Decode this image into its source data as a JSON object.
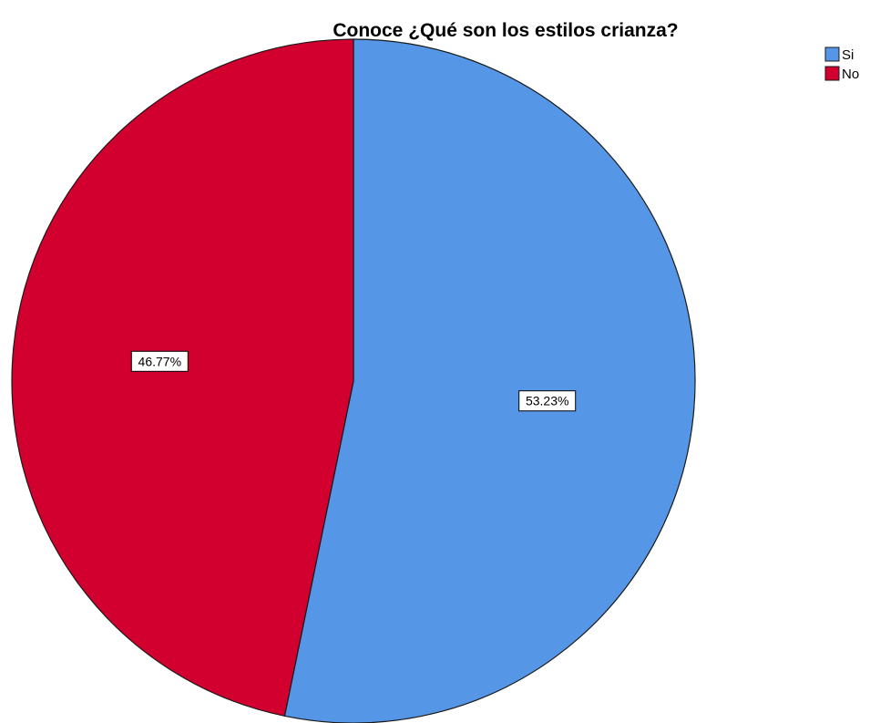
{
  "chart_data": {
    "type": "pie",
    "title": "Conoce ¿Qué son los estilos crianza?",
    "categories": [
      "Si",
      "No"
    ],
    "values": [
      53.23,
      46.77
    ],
    "unit": "%",
    "data_labels": [
      "53.23%",
      "46.77%"
    ],
    "colors": [
      "#5596E6",
      "#D1002F"
    ],
    "start_angle_deg": 0,
    "direction": "clockwise",
    "legend": {
      "position": "top-right",
      "entries": [
        "Si",
        "No"
      ]
    }
  }
}
